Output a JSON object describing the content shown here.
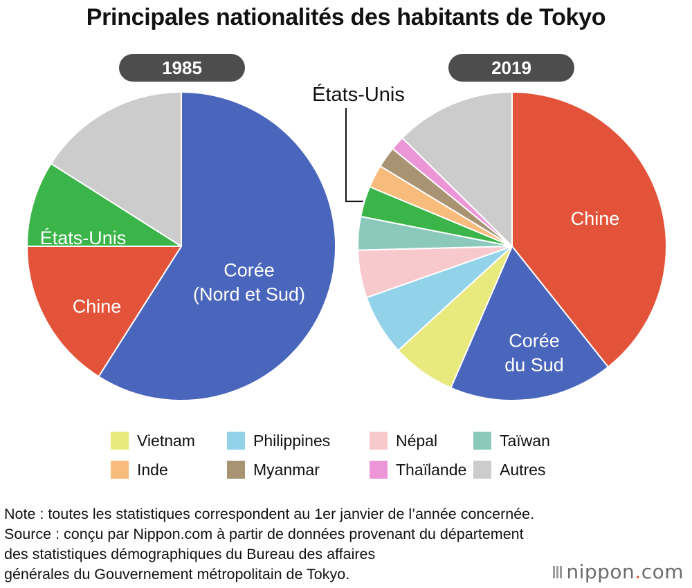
{
  "title": "Principales nationalités des habitants de Tokyo",
  "chart_data": [
    {
      "type": "pie",
      "year_label": "1985",
      "slices": [
        {
          "name": "Corée (Nord et Sud)",
          "label_lines": [
            "Corée",
            "(Nord et Sud)"
          ],
          "value": 59,
          "color": "#4a66bc"
        },
        {
          "name": "Chine",
          "label_lines": [
            "Chine"
          ],
          "value": 16,
          "color": "#e3533a"
        },
        {
          "name": "États-Unis",
          "label_lines": [
            "États-Unis"
          ],
          "value": 9,
          "color": "#3bb54a"
        },
        {
          "name": "Autres",
          "label_lines": [],
          "value": 16,
          "color": "#cccccc"
        }
      ]
    },
    {
      "type": "pie",
      "year_label": "2019",
      "slices": [
        {
          "name": "Chine",
          "label_lines": [
            "Chine"
          ],
          "value": 39.3,
          "color": "#e3533a"
        },
        {
          "name": "Corée du Sud",
          "label_lines": [
            "Corée",
            "du Sud"
          ],
          "value": 17.2,
          "color": "#4a66bc"
        },
        {
          "name": "Vietnam",
          "label_lines": [],
          "value": 6.7,
          "color": "#e8ea7d"
        },
        {
          "name": "Philippines",
          "label_lines": [],
          "value": 6.4,
          "color": "#93d3ea"
        },
        {
          "name": "Népal",
          "label_lines": [],
          "value": 5.0,
          "color": "#f8c9cc"
        },
        {
          "name": "Taïwan",
          "label_lines": [],
          "value": 3.5,
          "color": "#8cc9bd"
        },
        {
          "name": "États-Unis",
          "label_lines": [],
          "value": 3.2,
          "color": "#3bb54a",
          "callout": "États-Unis"
        },
        {
          "name": "Inde",
          "label_lines": [],
          "value": 2.4,
          "color": "#f7bb7b"
        },
        {
          "name": "Myanmar",
          "label_lines": [],
          "value": 2.2,
          "color": "#a89472"
        },
        {
          "name": "Thaïlande",
          "label_lines": [],
          "value": 1.5,
          "color": "#ec96d8"
        },
        {
          "name": "Autres",
          "label_lines": [],
          "value": 12.6,
          "color": "#cccccc"
        }
      ]
    }
  ],
  "legend": [
    {
      "label": "Vietnam",
      "color": "#e8ea7d"
    },
    {
      "label": "Philippines",
      "color": "#93d3ea"
    },
    {
      "label": "Népal",
      "color": "#f8c9cc"
    },
    {
      "label": "Taïwan",
      "color": "#8cc9bd"
    },
    {
      "label": "Inde",
      "color": "#f7bb7b"
    },
    {
      "label": "Myanmar",
      "color": "#a89472"
    },
    {
      "label": "Thaïlande",
      "color": "#ec96d8"
    },
    {
      "label": "Autres",
      "color": "#cccccc"
    }
  ],
  "notes": [
    "Note : toutes les statistiques correspondent au 1er janvier de l’année concernée.",
    "Source : conçu par Nippon.com à partir de données provenant du département",
    "des statistiques démographiques du Bureau des affaires",
    "générales du Gouvernement métropolitain de Tokyo."
  ],
  "brand": {
    "name": "nippon",
    "dot": ".",
    "suffix": "com"
  }
}
